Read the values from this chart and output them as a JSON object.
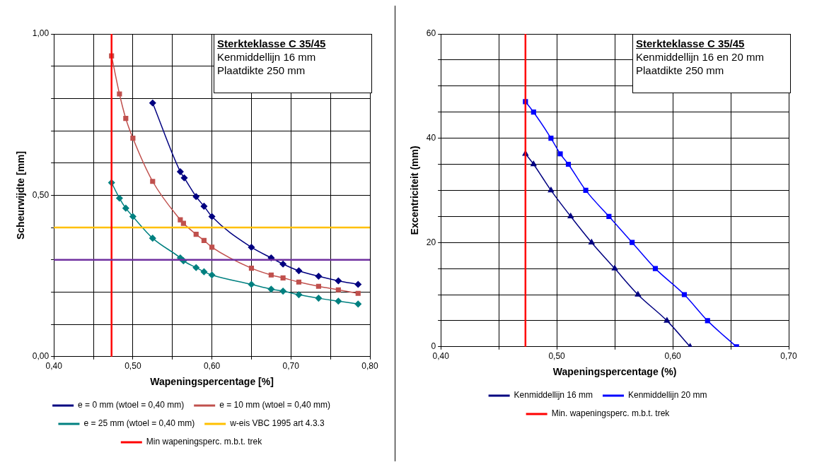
{
  "chart_data": [
    {
      "type": "line",
      "xlabel": "Wapeningspercentage [%]",
      "ylabel": "Scheurwijdte [mm]",
      "annotations": [
        "Sterkteklasse C 35/45",
        "Kenmiddellijn 16 mm",
        "Plaatdikte 250 mm"
      ],
      "xlim": [
        0.4,
        0.8
      ],
      "ylim": [
        0,
        1
      ],
      "xticks": [
        {
          "value": 0.4,
          "label": "0,40"
        },
        {
          "value": 0.45,
          "label": null
        },
        {
          "value": 0.5,
          "label": "0,50"
        },
        {
          "value": 0.55,
          "label": null
        },
        {
          "value": 0.6,
          "label": "0,60"
        },
        {
          "value": 0.65,
          "label": null
        },
        {
          "value": 0.7,
          "label": "0,70"
        },
        {
          "value": 0.75,
          "label": null
        },
        {
          "value": 0.8,
          "label": "0,80"
        }
      ],
      "yticks": [
        {
          "value": 0,
          "label": "0,00"
        },
        {
          "value": 0.1,
          "label": null
        },
        {
          "value": 0.2,
          "label": null
        },
        {
          "value": 0.3,
          "label": null
        },
        {
          "value": 0.4,
          "label": null
        },
        {
          "value": 0.5,
          "label": "0,50"
        },
        {
          "value": 0.6,
          "label": null
        },
        {
          "value": 0.7,
          "label": null
        },
        {
          "value": 0.8,
          "label": null
        },
        {
          "value": 0.9,
          "label": null
        },
        {
          "value": 1,
          "label": "1,00"
        }
      ],
      "grid": true,
      "legend": "bottom",
      "series": [
        {
          "name": "e = 0 mm (wtoel = 0,40 mm)",
          "color": "#000080",
          "marker": "diamond",
          "x": [
            0.525,
            0.56,
            0.565,
            0.58,
            0.59,
            0.6,
            0.65,
            0.675,
            0.69,
            0.71,
            0.735,
            0.76,
            0.785
          ],
          "values": [
            0.786,
            0.573,
            0.554,
            0.496,
            0.466,
            0.434,
            0.339,
            0.306,
            0.287,
            0.266,
            0.249,
            0.235,
            0.224
          ]
        },
        {
          "name": "e = 10 mm (wtoel = 0,40 mm)",
          "color": "#c0504d",
          "marker": "square",
          "x": [
            0.473,
            0.483,
            0.491,
            0.5,
            0.525,
            0.56,
            0.564,
            0.58,
            0.59,
            0.6,
            0.65,
            0.675,
            0.69,
            0.71,
            0.735,
            0.76,
            0.785
          ],
          "values": [
            0.932,
            0.814,
            0.738,
            0.677,
            0.543,
            0.424,
            0.413,
            0.379,
            0.36,
            0.339,
            0.274,
            0.253,
            0.244,
            0.231,
            0.218,
            0.207,
            0.196
          ]
        },
        {
          "name": "e = 25 mm (wtoel = 0,40 mm)",
          "color": "#008080",
          "marker": "diamond",
          "x": [
            0.473,
            0.483,
            0.491,
            0.5,
            0.525,
            0.56,
            0.564,
            0.58,
            0.59,
            0.6,
            0.65,
            0.675,
            0.69,
            0.71,
            0.735,
            0.76,
            0.785
          ],
          "values": [
            0.539,
            0.491,
            0.46,
            0.434,
            0.367,
            0.306,
            0.297,
            0.276,
            0.263,
            0.253,
            0.224,
            0.209,
            0.203,
            0.192,
            0.181,
            0.172,
            0.163
          ]
        }
      ],
      "ref_lines": [
        {
          "axis": "y",
          "value": 0.4,
          "label": "w-eis VBC 1995 art 4.3.3",
          "color": "#ffc000"
        },
        {
          "axis": "x",
          "value": 0.473,
          "label": "Min wapeningsperc. m.b.t. trek",
          "color": "#ff0000"
        },
        {
          "axis": "y",
          "value": 0.3,
          "color": "#7030a0"
        }
      ]
    },
    {
      "type": "line",
      "xlabel": "Wapeningspercentage (%)",
      "ylabel": "Excentriciteit (mm)",
      "annotations": [
        "Sterkteklasse C 35/45",
        "Kenmiddellijn 16 en 20 mm",
        "Plaatdikte 250 mm"
      ],
      "xlim": [
        0.4,
        0.7
      ],
      "ylim": [
        0,
        60
      ],
      "xticks": [
        {
          "value": 0.4,
          "label": "0,40"
        },
        {
          "value": 0.45,
          "label": null
        },
        {
          "value": 0.5,
          "label": "0,50"
        },
        {
          "value": 0.55,
          "label": null
        },
        {
          "value": 0.6,
          "label": "0,60"
        },
        {
          "value": 0.65,
          "label": null
        },
        {
          "value": 0.7,
          "label": "0,70"
        }
      ],
      "yticks": [
        0,
        {
          "value": 5,
          "label": null
        },
        {
          "value": 10,
          "label": null
        },
        {
          "value": 15,
          "label": null
        },
        20,
        {
          "value": 25,
          "label": null
        },
        {
          "value": 30,
          "label": null
        },
        {
          "value": 35,
          "label": null
        },
        40,
        {
          "value": 45,
          "label": null
        },
        {
          "value": 50,
          "label": null
        },
        {
          "value": 55,
          "label": null
        },
        60
      ],
      "grid": true,
      "legend": "bottom",
      "series": [
        {
          "name": "Kenmiddellijn 16 mm",
          "color": "#000080",
          "marker": "triangle",
          "x": [
            0.473,
            0.48,
            0.495,
            0.512,
            0.53,
            0.55,
            0.57,
            0.595,
            0.615
          ],
          "values": [
            37,
            35,
            30,
            25,
            20,
            15,
            10,
            5,
            0
          ]
        },
        {
          "name": "Kenmiddellijn 20 mm",
          "color": "#0000ff",
          "marker": "square",
          "x": [
            0.473,
            0.48,
            0.495,
            0.503,
            0.51,
            0.525,
            0.545,
            0.565,
            0.585,
            0.61,
            0.63,
            0.655
          ],
          "values": [
            47,
            45,
            40,
            37,
            35,
            30,
            25,
            20,
            15,
            10,
            5,
            0
          ]
        }
      ],
      "ref_lines": [
        {
          "axis": "x",
          "value": 0.473,
          "label": "Min. wapeningsperc. m.b.t. trek",
          "color": "#ff0000"
        }
      ]
    }
  ]
}
